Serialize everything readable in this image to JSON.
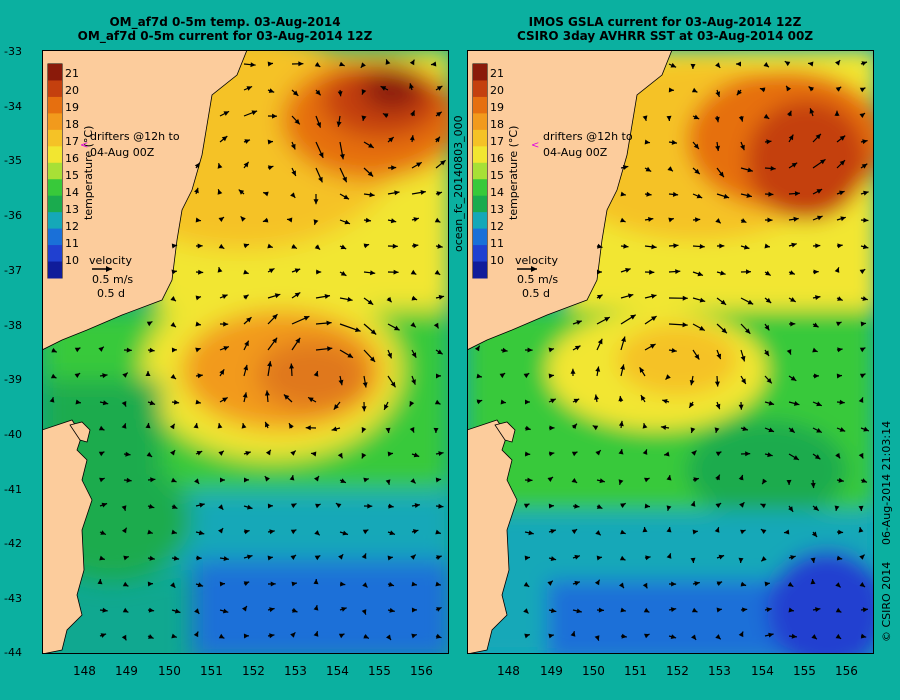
{
  "left_panel": {
    "title_line1": "OM_af7d 0-5m temp. 03-Aug-2014",
    "title_line2": "OM_af7d 0-5m current for 03-Aug-2014 12Z"
  },
  "right_panel": {
    "title_line1": "IMOS GSLA current for 03-Aug-2014 12Z",
    "title_line2": "CSIRO 3day AVHRR SST at 03-Aug-2014 00Z"
  },
  "latitude_labels": [
    "-33",
    "-34",
    "-35",
    "-36",
    "-37",
    "-38",
    "-39",
    "-40",
    "-41",
    "-42",
    "-43",
    "-44"
  ],
  "longitude_labels": [
    "148",
    "149",
    "150",
    "151",
    "152",
    "153",
    "154",
    "155",
    "156"
  ],
  "colorbar": {
    "label": "temperature (°C)",
    "ticks": [
      "21",
      "20",
      "19",
      "18",
      "17",
      "16",
      "15",
      "14",
      "13",
      "12",
      "11",
      "10"
    ],
    "colors": [
      "#8a1a0a",
      "#c4400e",
      "#e66f0f",
      "#f29a1c",
      "#f5c226",
      "#f2e630",
      "#a8e036",
      "#38c93a",
      "#1aab4e",
      "#15a8b8",
      "#1a70d8",
      "#2040d0",
      "#101c9a"
    ]
  },
  "legend": {
    "drifters_line1": "drifters @12h to",
    "drifters_line2": "04-Aug 00Z",
    "velocity_label": "velocity",
    "speed": "0.5 m/s",
    "duration": "0.5 d"
  },
  "side_label_forecast": "ocean_fc_20140803_000",
  "side_label_date": "06-Aug-2014 21:03:14",
  "side_label_copyright": "© CSIRO 2014",
  "colors": {
    "background": "#0bb0a0",
    "land": "#fccc9c",
    "arrow": "#000000",
    "drifter_marker": "#e000e0"
  }
}
